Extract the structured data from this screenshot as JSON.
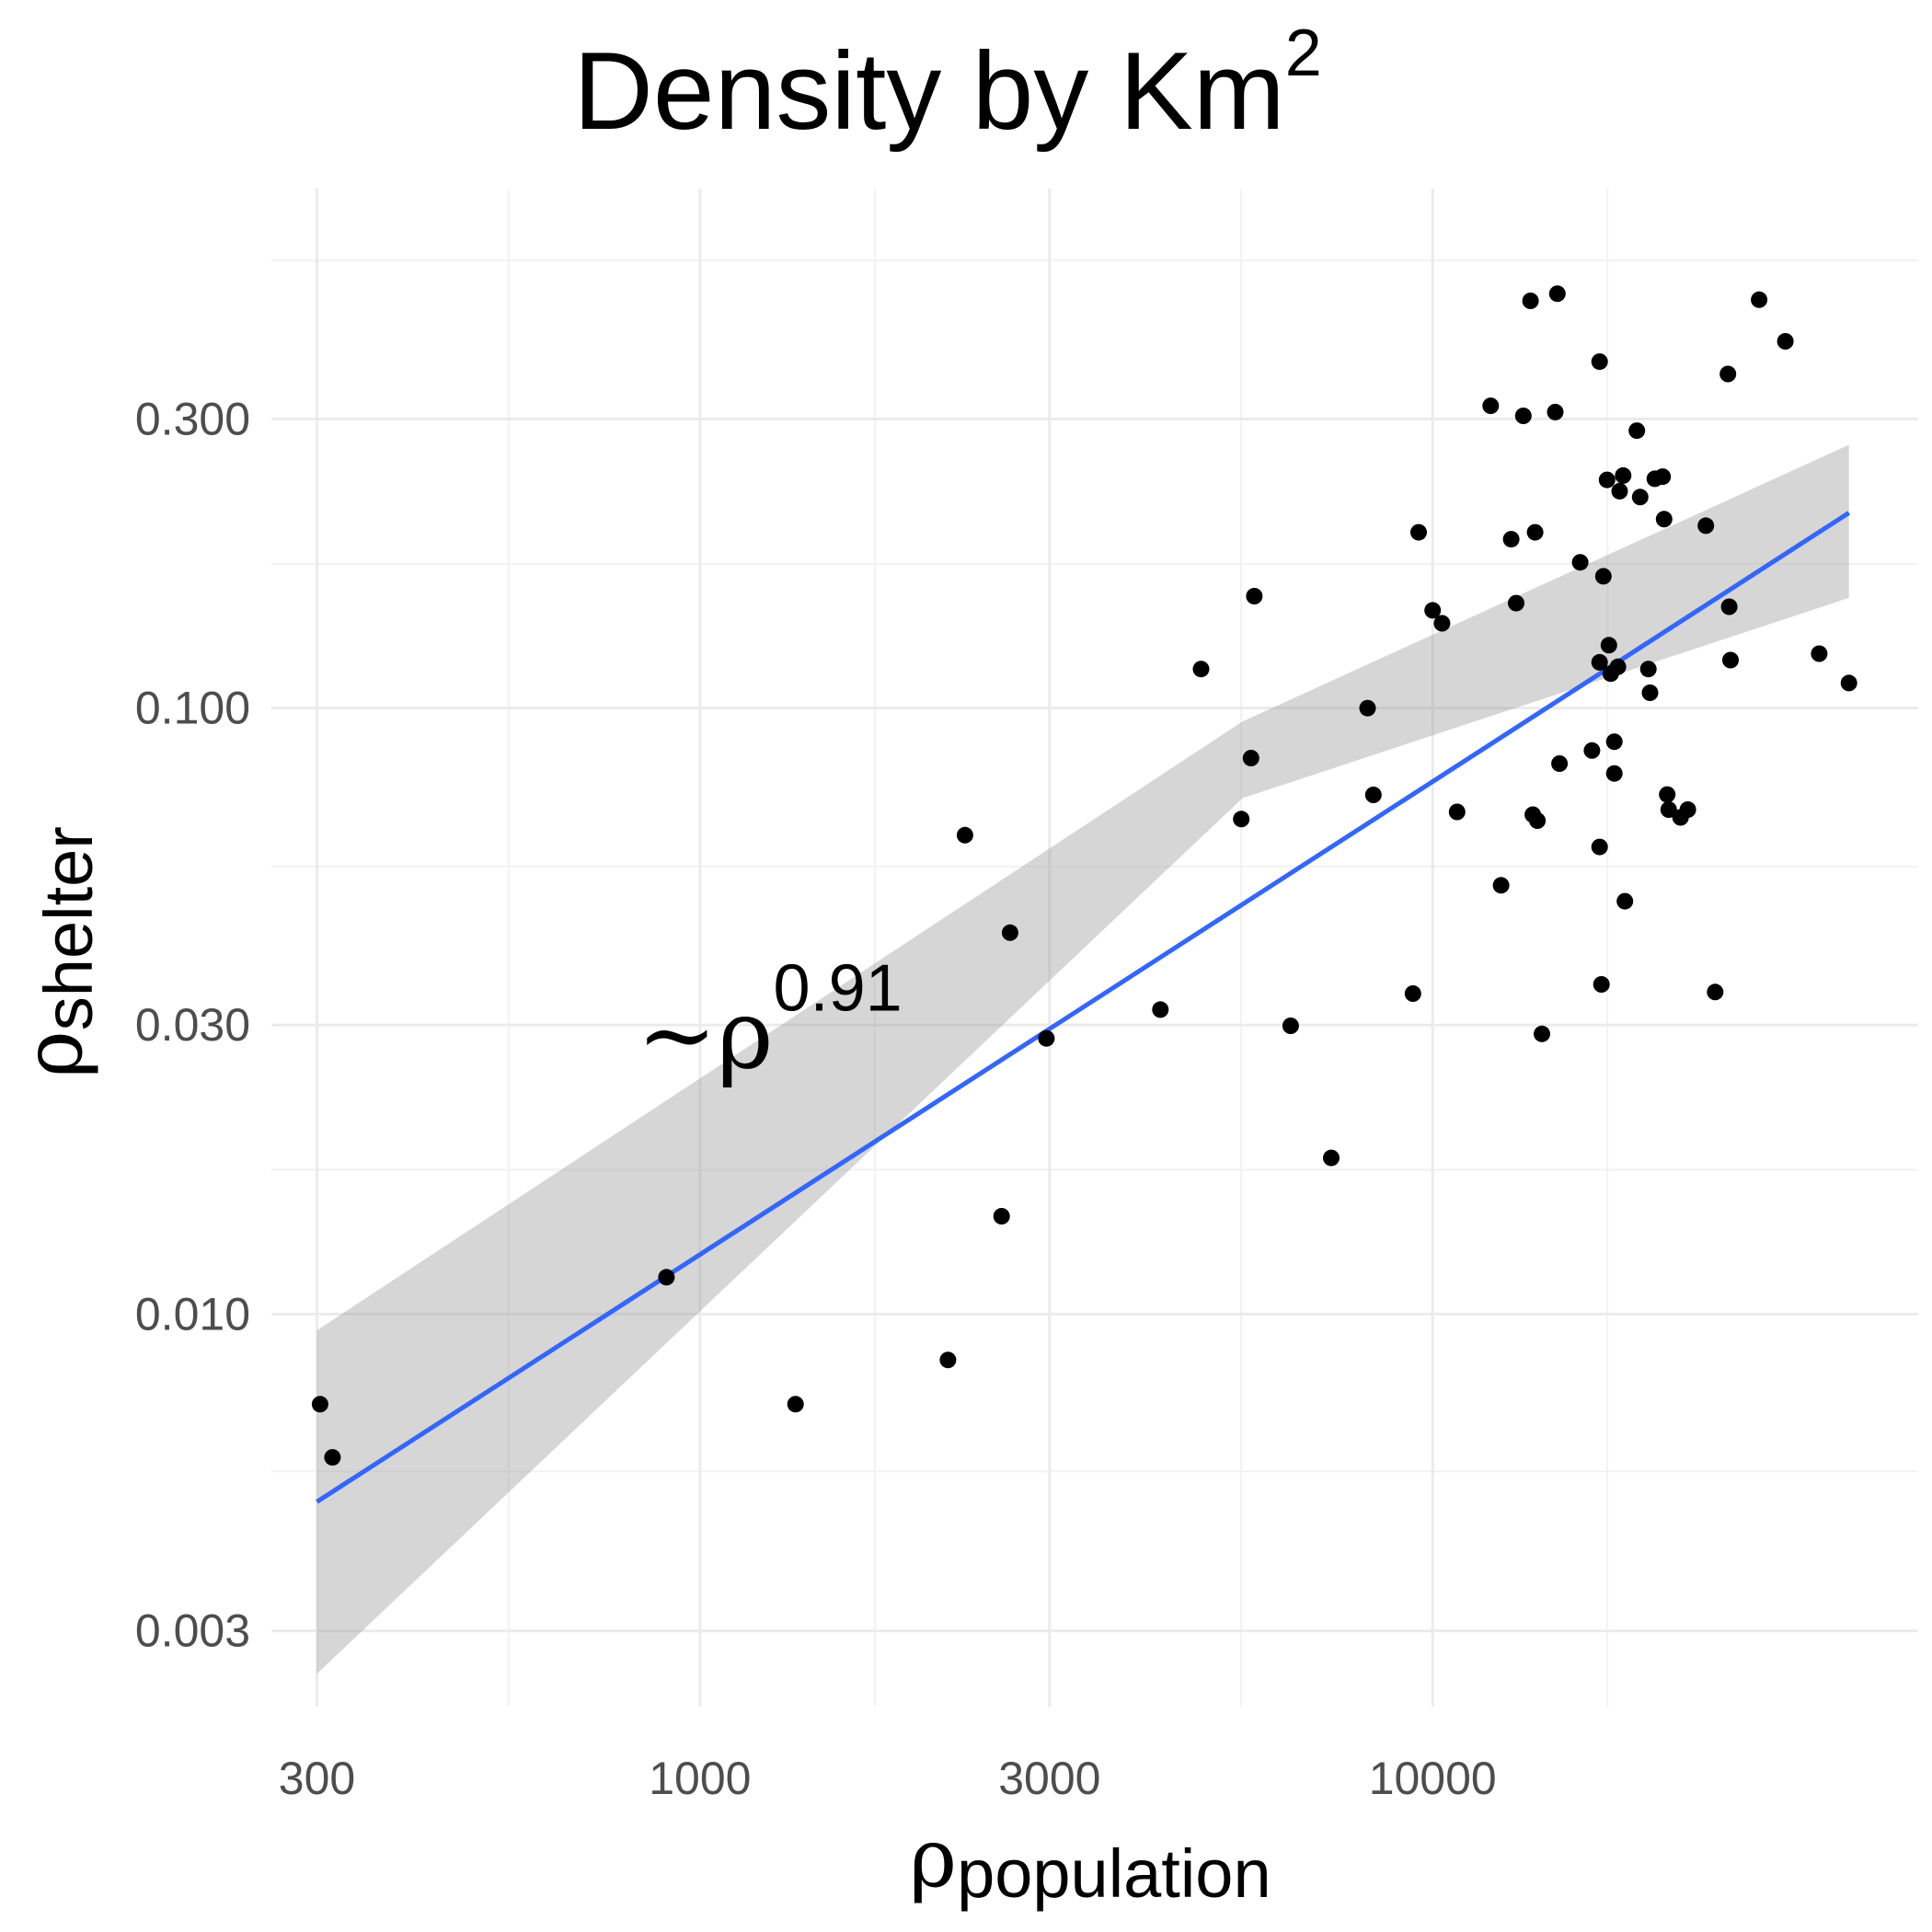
{
  "chart_data": {
    "type": "scatter",
    "title": "Density by Km",
    "title_superscript": "2",
    "xlabel_symbol": "ρ",
    "xlabel_subscript": "population",
    "ylabel_symbol": "ρ",
    "ylabel_subscript": "shelter",
    "x_scale": "log10",
    "y_scale": "log10",
    "xlim": [
      260,
      46000
    ],
    "ylim": [
      0.00225,
      0.72
    ],
    "x_ticks": [
      300,
      1000,
      3000,
      10000
    ],
    "x_tick_labels": [
      "300",
      "1000",
      "3000",
      "10000"
    ],
    "x_minor_ticks": [
      548,
      1732,
      5477,
      17321
    ],
    "y_ticks": [
      0.003,
      0.01,
      0.03,
      0.1,
      0.3
    ],
    "y_tick_labels": [
      "0.003",
      "0.010",
      "0.030",
      "0.100",
      "0.300"
    ],
    "y_minor_ticks": [
      0.0055,
      0.0173,
      0.0548,
      0.173,
      0.548
    ],
    "grid": true,
    "annotation": {
      "prefix": "~ρ",
      "exponent": "0.91",
      "x": 820,
      "y": 0.0255
    },
    "fit": {
      "color": "#3366ff",
      "x": [
        300,
        37000
      ],
      "y": [
        0.0049,
        0.21
      ],
      "ci_lower": [
        0.00255,
        0.152
      ],
      "ci_upper": [
        0.0094,
        0.272
      ],
      "ci_mid": [
        5500,
        0.082
      ],
      "ci_mid_lower": [
        0.071
      ],
      "ci_mid_upper": [
        0.095
      ],
      "ci_color": "#999999"
    },
    "points": {
      "color": "#000000",
      "x": [
        303,
        315,
        900,
        1350,
        2180,
        2300,
        2580,
        2650,
        2970,
        4250,
        4830,
        5480,
        5650,
        5710,
        6400,
        7270,
        8150,
        8300,
        9400,
        9570,
        10000,
        10300,
        10800,
        12000,
        12400,
        12800,
        13000,
        13300,
        13600,
        13700,
        13800,
        13900,
        14100,
        14700,
        14800,
        14900,
        15900,
        16500,
        16900,
        16900,
        16900,
        17000,
        17100,
        17300,
        17400,
        17500,
        17700,
        17700,
        17900,
        18000,
        18200,
        18300,
        19000,
        19200,
        19700,
        19800,
        20100,
        20600,
        20700,
        20900,
        21000,
        21800,
        22300,
        23600,
        24300,
        25300,
        25400,
        25500,
        27900,
        30300,
        33700,
        37000
      ],
      "y": [
        0.0071,
        0.0058,
        0.0115,
        0.0071,
        0.0084,
        0.0617,
        0.0145,
        0.0426,
        0.0285,
        0.0318,
        0.116,
        0.0656,
        0.0827,
        0.153,
        0.0299,
        0.0181,
        0.1,
        0.0719,
        0.0338,
        0.195,
        0.145,
        0.138,
        0.0674,
        0.3154,
        0.051,
        0.19,
        0.149,
        0.3036,
        0.47,
        0.0667,
        0.195,
        0.0652,
        0.029,
        0.308,
        0.483,
        0.081,
        0.174,
        0.0851,
        0.119,
        0.373,
        0.059,
        0.035,
        0.165,
        0.238,
        0.127,
        0.114,
        0.088,
        0.078,
        0.117,
        0.228,
        0.242,
        0.048,
        0.287,
        0.223,
        0.116,
        0.106,
        0.239,
        0.241,
        0.205,
        0.072,
        0.068,
        0.066,
        0.068,
        0.2,
        0.034,
        0.356,
        0.147,
        0.12,
        0.472,
        0.403,
        0.123,
        0.11
      ]
    }
  }
}
